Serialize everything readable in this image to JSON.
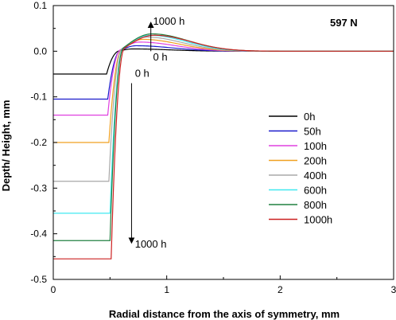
{
  "chart_data": {
    "type": "line",
    "xlabel": "Radial distance from the axis of symmetry, mm",
    "ylabel": "Depth/ Height, mm",
    "xlim": [
      0,
      3
    ],
    "ylim": [
      -0.5,
      0.1
    ],
    "x_ticks": [
      {
        "value": 0,
        "label": "0"
      },
      {
        "value": 1,
        "label": "1"
      },
      {
        "value": 2,
        "label": "2"
      },
      {
        "value": 3,
        "label": "3"
      }
    ],
    "y_ticks": [
      {
        "value": 0.1,
        "label": "0.1"
      },
      {
        "value": 0.0,
        "label": "0.0"
      },
      {
        "value": -0.1,
        "label": "-0.1"
      },
      {
        "value": -0.2,
        "label": "-0.2"
      },
      {
        "value": -0.3,
        "label": "-0.3"
      },
      {
        "value": -0.4,
        "label": "-0.4"
      },
      {
        "value": -0.5,
        "label": "-0.5"
      }
    ],
    "grid": false,
    "legend_position": "right",
    "load_label": "597 N",
    "annotations": [
      {
        "text": "1000 h",
        "x": 0.88,
        "y": 0.058
      },
      {
        "text": "0 h",
        "x": 0.88,
        "y": -0.02
      },
      {
        "text": "0 h",
        "x": 0.72,
        "y": -0.056
      },
      {
        "text": "1000 h",
        "x": 0.72,
        "y": -0.43
      }
    ],
    "arrows": [
      {
        "from": [
          0.86,
          0.0
        ],
        "to": [
          0.86,
          0.058
        ]
      },
      {
        "from": [
          0.69,
          -0.07
        ],
        "to": [
          0.69,
          -0.415
        ]
      }
    ],
    "series": [
      {
        "name": "0h",
        "color": "#000000",
        "depth": -0.05,
        "edge": 0.47,
        "peak_height": 0.005,
        "peak_x": 0.7
      },
      {
        "name": "50h",
        "color": "#1a1acc",
        "depth": -0.105,
        "edge": 0.48,
        "peak_height": 0.012,
        "peak_x": 0.73
      },
      {
        "name": "100h",
        "color": "#e040e0",
        "depth": -0.14,
        "edge": 0.48,
        "peak_height": 0.02,
        "peak_x": 0.76
      },
      {
        "name": "200h",
        "color": "#f0a020",
        "depth": -0.2,
        "edge": 0.49,
        "peak_height": 0.026,
        "peak_x": 0.79
      },
      {
        "name": "400h",
        "color": "#a8a8a8",
        "depth": -0.285,
        "edge": 0.49,
        "peak_height": 0.031,
        "peak_x": 0.82
      },
      {
        "name": "600h",
        "color": "#40e8f0",
        "depth": -0.355,
        "edge": 0.5,
        "peak_height": 0.035,
        "peak_x": 0.85
      },
      {
        "name": "800h",
        "color": "#208040",
        "depth": -0.415,
        "edge": 0.5,
        "peak_height": 0.038,
        "peak_x": 0.87
      },
      {
        "name": "1000h",
        "color": "#cc2020",
        "depth": -0.455,
        "edge": 0.51,
        "peak_height": 0.035,
        "peak_x": 0.89
      }
    ]
  }
}
